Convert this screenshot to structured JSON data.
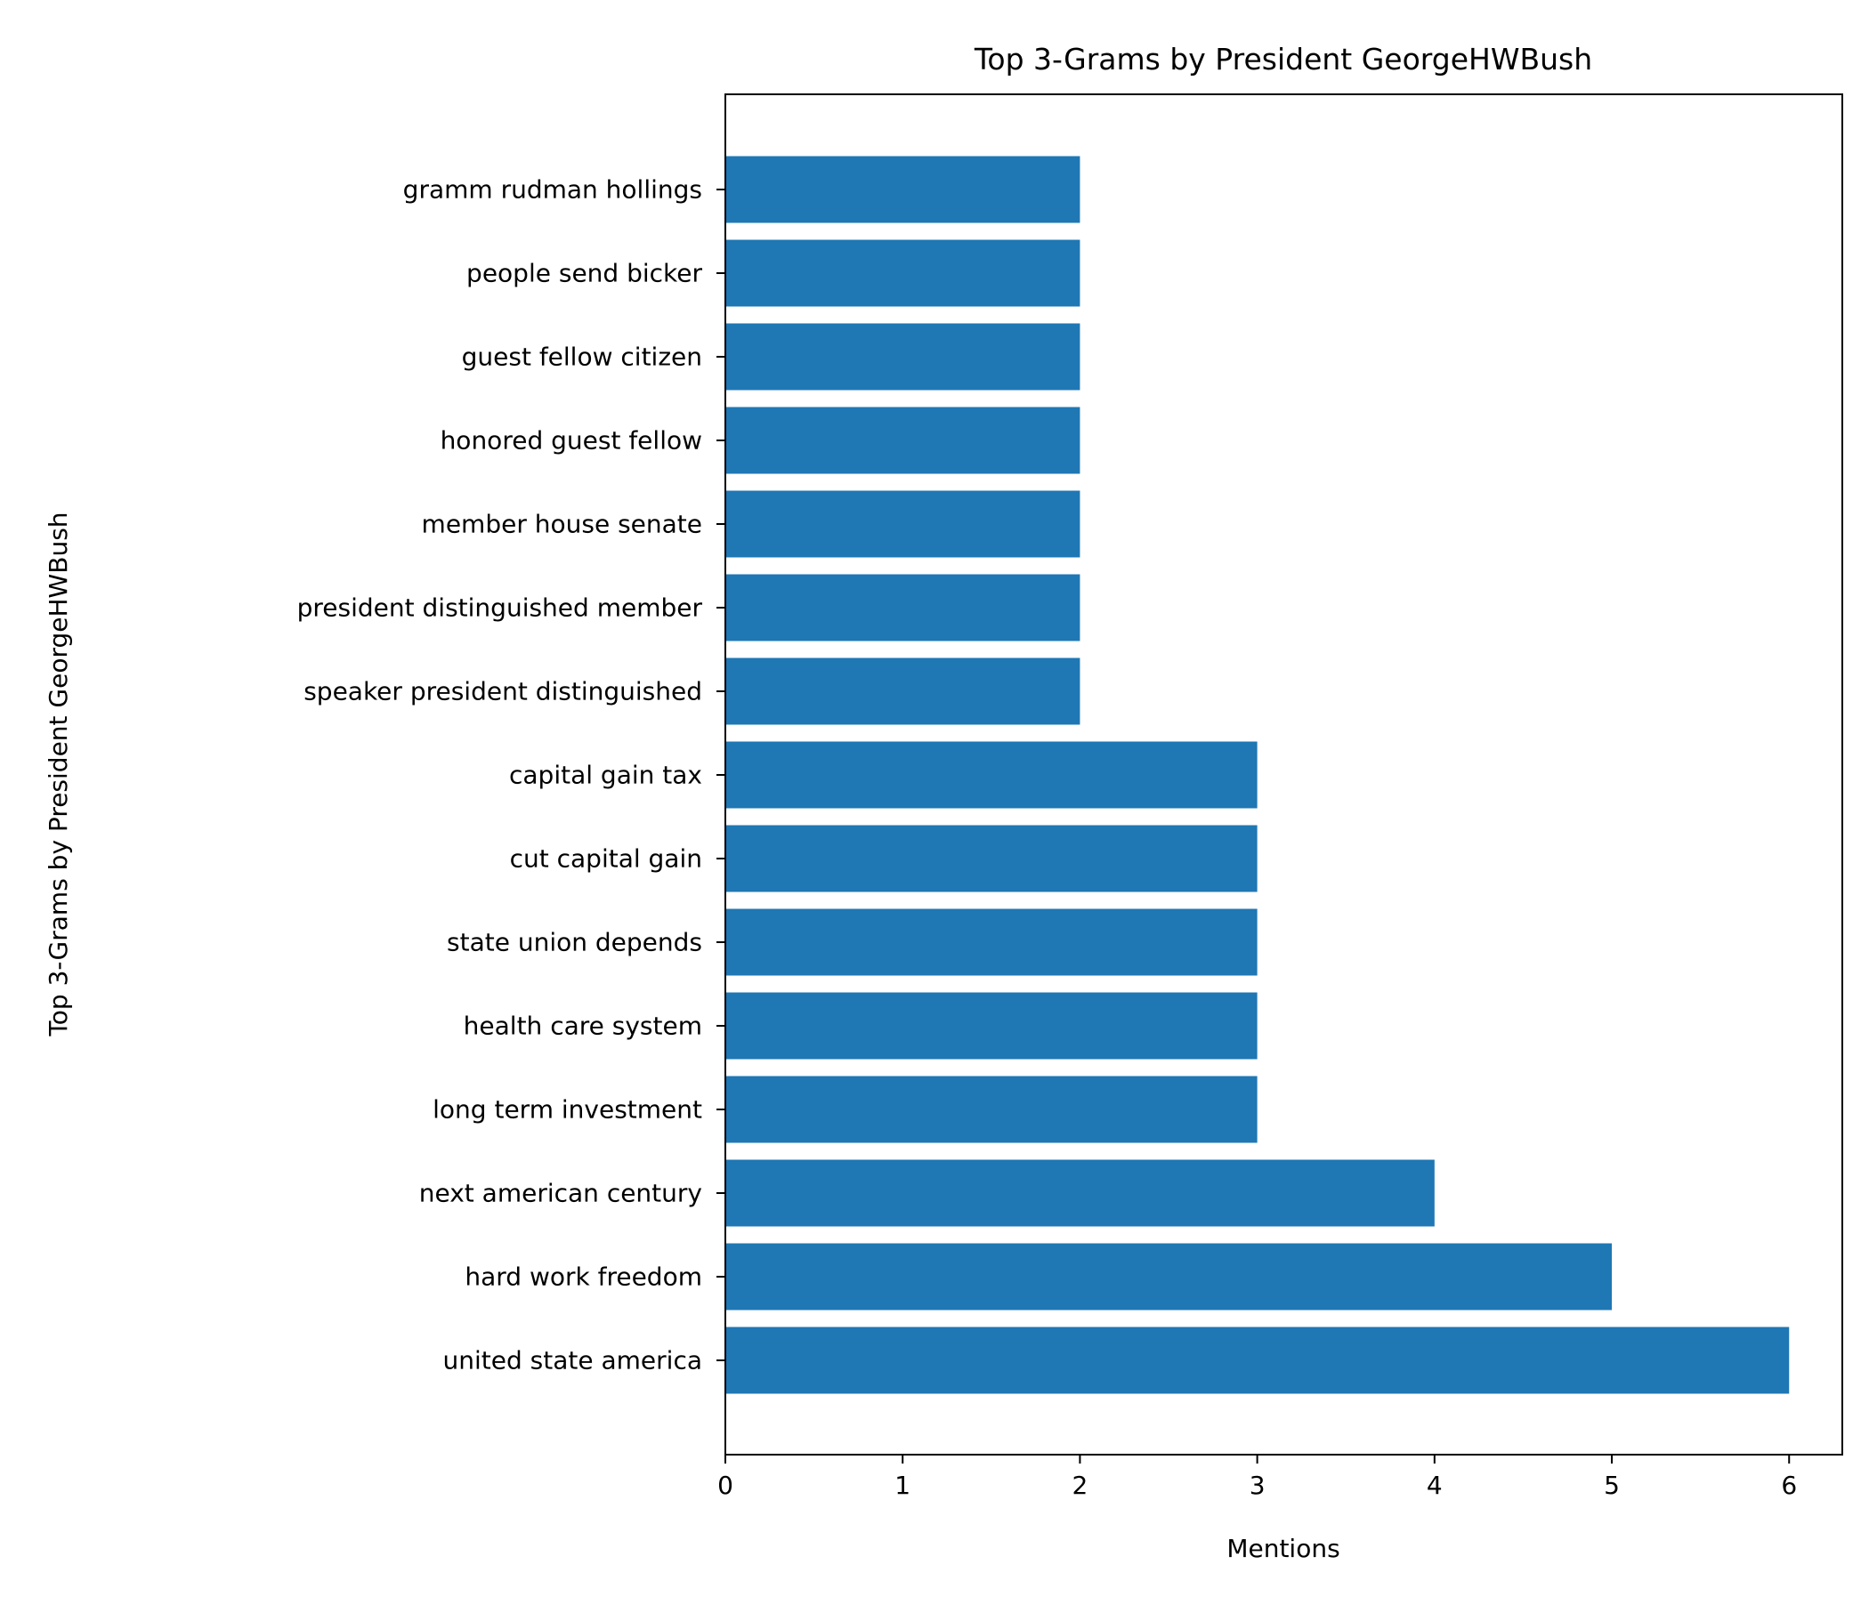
{
  "chart_data": {
    "type": "bar",
    "orientation": "horizontal",
    "title": "Top 3-Grams by President GeorgeHWBush",
    "xlabel": "Mentions",
    "ylabel": "Top 3-Grams by President GeorgeHWBush",
    "categories": [
      "united state america",
      "hard work freedom",
      "next american century",
      "long term investment",
      "health care system",
      "state union depends",
      "cut capital gain",
      "capital gain tax",
      "speaker president distinguished",
      "president distinguished member",
      "member house senate",
      "honored guest fellow",
      "guest fellow citizen",
      "people send bicker",
      "gramm rudman hollings"
    ],
    "values": [
      6,
      5,
      4,
      3,
      3,
      3,
      3,
      3,
      2,
      2,
      2,
      2,
      2,
      2,
      2
    ],
    "xlim": [
      0,
      6.3
    ],
    "xticks": [
      0,
      1,
      2,
      3,
      4,
      5,
      6
    ],
    "bar_color": "#1f77b4",
    "grid": false,
    "legend": "none"
  }
}
